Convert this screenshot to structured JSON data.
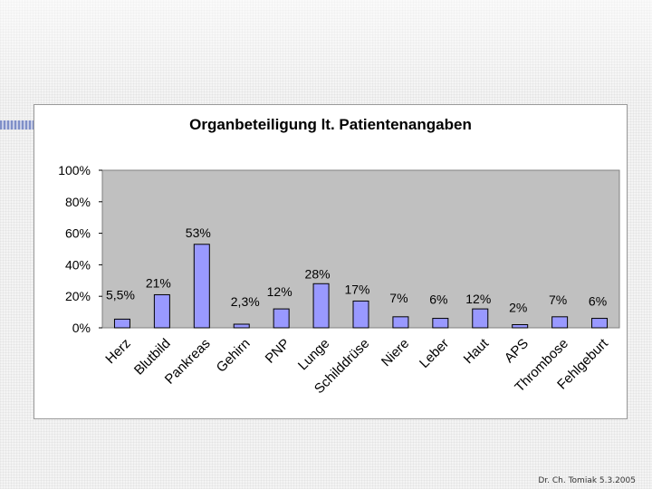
{
  "footer": {
    "credit": "Dr. Ch. Tomiak 5.3.2005"
  },
  "chart_data": {
    "type": "bar",
    "title": "Organbeteiligung lt. Patientenangaben",
    "categories": [
      "Herz",
      "Blutbild",
      "Pankreas",
      "Gehirn",
      "PNP",
      "Lunge",
      "Schilddrüse",
      "Niere",
      "Leber",
      "Haut",
      "APS",
      "Thrombose",
      "Fehlgeburt"
    ],
    "values": [
      5.5,
      21,
      53,
      2.3,
      12,
      28,
      17,
      7,
      6,
      12,
      2,
      7,
      6
    ],
    "data_labels": [
      "5,5%",
      "21%",
      "53%",
      "2,3%",
      "12%",
      "28%",
      "17%",
      "7%",
      "6%",
      "12%",
      "2%",
      "7%",
      "6%"
    ],
    "yticks": [
      0,
      20,
      40,
      60,
      80,
      100
    ],
    "ytick_labels": [
      "0%",
      "20%",
      "40%",
      "60%",
      "80%",
      "100%"
    ],
    "ylim": [
      0,
      100
    ],
    "grid": false,
    "legend": "none",
    "colors": {
      "plot_area": "#c0c0c0",
      "bar_fill": "#9999ff",
      "bar_stroke": "#000000"
    }
  }
}
